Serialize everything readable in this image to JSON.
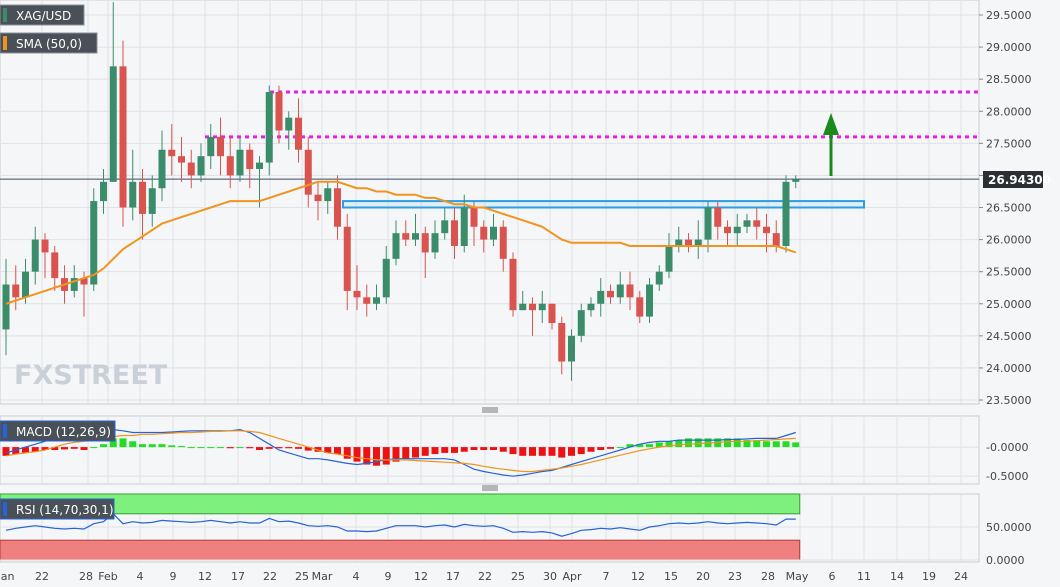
{
  "chart_data": {
    "type": "candlestick",
    "symbol": "XAG/USD",
    "indicator_label": "SMA (50,0)",
    "watermark": "FXSTREET",
    "last_price": "26.94300",
    "price_axis_ticks": [
      "29.5000",
      "29.0000",
      "28.5000",
      "28.0000",
      "27.5000",
      "27.0000",
      "26.5000",
      "26.0000",
      "25.5000",
      "25.0000",
      "24.5000",
      "24.0000",
      "23.5000"
    ],
    "x_ticks": [
      "Jan",
      "22",
      "28",
      "Feb",
      "4",
      "9",
      "12",
      "17",
      "22",
      "25",
      "Mar",
      "4",
      "9",
      "12",
      "17",
      "22",
      "25",
      "30",
      "Apr",
      "7",
      "12",
      "15",
      "20",
      "23",
      "28",
      "May",
      "6",
      "11",
      "14",
      "19",
      "24"
    ],
    "ylim": [
      23.4,
      29.75
    ],
    "candles": [
      [
        24.6,
        25.3,
        25.7,
        24.2
      ],
      [
        25.3,
        25.1,
        25.6,
        24.9
      ],
      [
        25.1,
        25.5,
        25.7,
        25.0
      ],
      [
        25.5,
        26.0,
        26.2,
        25.3
      ],
      [
        26.0,
        25.8,
        26.1,
        25.4
      ],
      [
        25.8,
        25.4,
        25.9,
        25.2
      ],
      [
        25.4,
        25.2,
        25.6,
        25.0
      ],
      [
        25.2,
        25.4,
        25.6,
        25.1
      ],
      [
        25.4,
        25.3,
        25.5,
        24.8
      ],
      [
        25.3,
        26.6,
        26.8,
        25.2
      ],
      [
        26.6,
        26.9,
        27.1,
        26.4
      ],
      [
        26.9,
        28.7,
        29.7,
        26.9
      ],
      [
        28.7,
        26.5,
        29.1,
        26.2
      ],
      [
        26.5,
        26.9,
        27.4,
        26.3
      ],
      [
        26.9,
        26.4,
        27.1,
        26.0
      ],
      [
        26.4,
        26.8,
        27.0,
        26.2
      ],
      [
        26.8,
        27.4,
        27.7,
        26.6
      ],
      [
        27.4,
        27.3,
        27.8,
        27.0
      ],
      [
        27.3,
        27.2,
        27.6,
        26.9
      ],
      [
        27.2,
        27.0,
        27.4,
        26.8
      ],
      [
        27.0,
        27.3,
        27.5,
        26.9
      ],
      [
        27.3,
        27.6,
        27.8,
        27.1
      ],
      [
        27.6,
        27.3,
        27.9,
        27.0
      ],
      [
        27.3,
        27.0,
        27.6,
        26.8
      ],
      [
        27.0,
        27.4,
        27.6,
        26.9
      ],
      [
        27.4,
        27.1,
        27.5,
        26.8
      ],
      [
        27.1,
        27.2,
        27.3,
        26.5
      ],
      [
        27.2,
        28.3,
        28.4,
        27.0
      ],
      [
        28.3,
        27.7,
        28.4,
        27.5
      ],
      [
        27.7,
        27.9,
        28.0,
        27.4
      ],
      [
        27.9,
        27.4,
        28.2,
        27.2
      ],
      [
        27.4,
        26.7,
        27.6,
        26.5
      ],
      [
        26.7,
        26.6,
        26.9,
        26.3
      ],
      [
        26.6,
        26.8,
        26.9,
        26.4
      ],
      [
        26.8,
        26.2,
        27.0,
        26.0
      ],
      [
        26.2,
        25.2,
        26.4,
        24.9
      ],
      [
        25.2,
        25.1,
        25.6,
        24.9
      ],
      [
        25.1,
        25.0,
        25.3,
        24.8
      ],
      [
        25.0,
        25.1,
        25.3,
        24.9
      ],
      [
        25.1,
        25.7,
        25.9,
        25.0
      ],
      [
        25.7,
        26.1,
        26.3,
        25.6
      ],
      [
        26.1,
        26.0,
        26.3,
        25.9
      ],
      [
        26.0,
        26.1,
        26.4,
        25.9
      ],
      [
        26.1,
        25.8,
        26.2,
        25.4
      ],
      [
        25.8,
        26.1,
        26.3,
        25.7
      ],
      [
        26.1,
        26.3,
        26.5,
        26.0
      ],
      [
        26.3,
        25.9,
        26.5,
        25.7
      ],
      [
        25.9,
        26.5,
        26.7,
        25.8
      ],
      [
        26.5,
        26.2,
        26.6,
        25.9
      ],
      [
        26.2,
        26.0,
        26.3,
        25.8
      ],
      [
        26.0,
        26.2,
        26.4,
        25.9
      ],
      [
        26.2,
        25.7,
        26.3,
        25.5
      ],
      [
        25.7,
        24.9,
        25.8,
        24.8
      ],
      [
        24.9,
        25.0,
        25.2,
        24.9
      ],
      [
        25.0,
        24.9,
        25.1,
        24.5
      ],
      [
        24.9,
        25.0,
        25.2,
        24.7
      ],
      [
        25.0,
        24.7,
        25.0,
        24.6
      ],
      [
        24.7,
        24.1,
        24.8,
        23.9
      ],
      [
        24.1,
        24.5,
        24.6,
        23.8
      ],
      [
        24.5,
        24.9,
        25.0,
        24.4
      ],
      [
        24.9,
        25.0,
        25.1,
        24.8
      ],
      [
        25.0,
        25.2,
        25.4,
        24.8
      ],
      [
        25.2,
        25.1,
        25.3,
        25.0
      ],
      [
        25.1,
        25.3,
        25.5,
        25.0
      ],
      [
        25.3,
        25.1,
        25.5,
        24.9
      ],
      [
        25.1,
        24.8,
        25.2,
        24.7
      ],
      [
        24.8,
        25.3,
        25.4,
        24.7
      ],
      [
        25.3,
        25.5,
        25.6,
        25.2
      ],
      [
        25.5,
        25.9,
        26.1,
        25.4
      ],
      [
        25.9,
        26.0,
        26.2,
        25.8
      ],
      [
        26.0,
        25.9,
        26.1,
        25.8
      ],
      [
        25.9,
        26.0,
        26.3,
        25.7
      ],
      [
        26.0,
        26.5,
        26.6,
        25.8
      ],
      [
        26.5,
        26.2,
        26.6,
        26.0
      ],
      [
        26.2,
        26.1,
        26.3,
        25.9
      ],
      [
        26.1,
        26.2,
        26.4,
        25.9
      ],
      [
        26.2,
        26.3,
        26.4,
        26.1
      ],
      [
        26.3,
        26.2,
        26.5,
        26.0
      ],
      [
        26.2,
        26.1,
        26.4,
        25.8
      ],
      [
        26.1,
        25.9,
        26.3,
        25.8
      ],
      [
        25.9,
        26.9,
        27.0,
        25.8
      ],
      [
        26.9,
        26.94,
        27.0,
        26.8
      ]
    ],
    "sma": [
      25.0,
      25.05,
      25.1,
      25.15,
      25.2,
      25.25,
      25.3,
      25.35,
      25.4,
      25.45,
      25.55,
      25.7,
      25.85,
      25.95,
      26.05,
      26.15,
      26.25,
      26.3,
      26.35,
      26.4,
      26.45,
      26.5,
      26.55,
      26.6,
      26.6,
      26.6,
      26.6,
      26.65,
      26.7,
      26.75,
      26.8,
      26.85,
      26.9,
      26.9,
      26.9,
      26.85,
      26.8,
      26.8,
      26.75,
      26.75,
      26.7,
      26.7,
      26.7,
      26.65,
      26.65,
      26.6,
      26.55,
      26.55,
      26.5,
      26.5,
      26.45,
      26.4,
      26.35,
      26.3,
      26.25,
      26.2,
      26.1,
      26.0,
      25.95,
      25.95,
      25.95,
      25.95,
      25.95,
      25.95,
      25.9,
      25.9,
      25.9,
      25.9,
      25.9,
      25.9,
      25.9,
      25.9,
      25.9,
      25.9,
      25.9,
      25.9,
      25.9,
      25.9,
      25.9,
      25.9,
      25.85,
      25.8
    ],
    "resistance_lines": [
      28.3,
      27.6
    ],
    "support_zone": [
      26.5,
      26.6
    ],
    "macd": {
      "label": "MACD (12,26,9)",
      "ticks": [
        "-0.0000",
        "-0.5000"
      ],
      "ylim": [
        -0.6,
        0.5
      ],
      "histogram": [
        -0.15,
        -0.12,
        -0.1,
        -0.08,
        -0.05,
        -0.05,
        -0.04,
        -0.03,
        -0.05,
        0.0,
        0.05,
        0.15,
        0.15,
        0.1,
        0.05,
        0.05,
        0.05,
        0.03,
        0.02,
        0.0,
        0.0,
        0.0,
        0.0,
        -0.02,
        0.0,
        -0.02,
        -0.05,
        -0.03,
        -0.02,
        -0.02,
        -0.03,
        -0.06,
        -0.08,
        -0.1,
        -0.12,
        -0.2,
        -0.25,
        -0.3,
        -0.32,
        -0.3,
        -0.25,
        -0.2,
        -0.18,
        -0.15,
        -0.12,
        -0.1,
        -0.1,
        -0.08,
        -0.05,
        -0.05,
        -0.05,
        -0.08,
        -0.12,
        -0.15,
        -0.15,
        -0.15,
        -0.15,
        -0.18,
        -0.15,
        -0.12,
        -0.08,
        -0.05,
        -0.03,
        0.0,
        0.05,
        0.05,
        0.05,
        0.08,
        0.1,
        0.12,
        0.15,
        0.15,
        0.15,
        0.15,
        0.15,
        0.15,
        0.12,
        0.12,
        0.1,
        0.1,
        0.1,
        0.08
      ],
      "macd_line": [
        -0.1,
        -0.05,
        0.0,
        0.05,
        0.1,
        0.15,
        0.18,
        0.2,
        0.2,
        0.22,
        0.25,
        0.3,
        0.28,
        0.25,
        0.25,
        0.25,
        0.25,
        0.26,
        0.27,
        0.28,
        0.28,
        0.28,
        0.28,
        0.28,
        0.3,
        0.25,
        0.15,
        0.05,
        -0.05,
        -0.1,
        -0.15,
        -0.2,
        -0.2,
        -0.22,
        -0.25,
        -0.28,
        -0.3,
        -0.28,
        -0.25,
        -0.22,
        -0.2,
        -0.2,
        -0.2,
        -0.2,
        -0.2,
        -0.2,
        -0.22,
        -0.3,
        -0.38,
        -0.42,
        -0.45,
        -0.48,
        -0.5,
        -0.48,
        -0.45,
        -0.42,
        -0.4,
        -0.35,
        -0.3,
        -0.25,
        -0.2,
        -0.15,
        -0.1,
        -0.05,
        0.0,
        0.05,
        0.08,
        0.1,
        0.1,
        0.12,
        0.12,
        0.12,
        0.12,
        0.12,
        0.13,
        0.13,
        0.14,
        0.15,
        0.15,
        0.15,
        0.2,
        0.25
      ],
      "signal_line": [
        -0.15,
        -0.12,
        -0.1,
        -0.08,
        -0.05,
        0.0,
        0.05,
        0.08,
        0.1,
        0.12,
        0.15,
        0.18,
        0.2,
        0.2,
        0.22,
        0.22,
        0.23,
        0.24,
        0.25,
        0.25,
        0.26,
        0.27,
        0.27,
        0.28,
        0.28,
        0.27,
        0.25,
        0.2,
        0.15,
        0.1,
        0.05,
        0.0,
        -0.05,
        -0.1,
        -0.12,
        -0.15,
        -0.18,
        -0.2,
        -0.22,
        -0.22,
        -0.22,
        -0.22,
        -0.23,
        -0.24,
        -0.25,
        -0.26,
        -0.27,
        -0.28,
        -0.3,
        -0.33,
        -0.36,
        -0.38,
        -0.4,
        -0.42,
        -0.42,
        -0.4,
        -0.38,
        -0.36,
        -0.33,
        -0.3,
        -0.26,
        -0.22,
        -0.18,
        -0.14,
        -0.1,
        -0.06,
        -0.03,
        0.0,
        0.02,
        0.04,
        0.05,
        0.06,
        0.07,
        0.08,
        0.09,
        0.1,
        0.1,
        0.11,
        0.12,
        0.13,
        0.14,
        0.15
      ]
    },
    "rsi": {
      "label": "RSI (14,70,30,1)",
      "ticks": [
        "50.0000",
        "0.0000"
      ],
      "ylim": [
        0,
        100
      ],
      "upper": 70,
      "lower": 30,
      "values": [
        45,
        48,
        50,
        52,
        50,
        48,
        47,
        48,
        47,
        55,
        58,
        70,
        55,
        58,
        56,
        57,
        60,
        59,
        58,
        57,
        58,
        60,
        58,
        56,
        58,
        56,
        56,
        63,
        58,
        59,
        56,
        52,
        51,
        52,
        50,
        44,
        44,
        43,
        44,
        48,
        52,
        52,
        52,
        50,
        52,
        53,
        50,
        54,
        52,
        51,
        52,
        48,
        42,
        43,
        42,
        43,
        41,
        36,
        40,
        45,
        46,
        48,
        47,
        49,
        47,
        45,
        50,
        52,
        55,
        56,
        55,
        56,
        58,
        56,
        55,
        56,
        57,
        56,
        55,
        53,
        62,
        62
      ]
    }
  }
}
